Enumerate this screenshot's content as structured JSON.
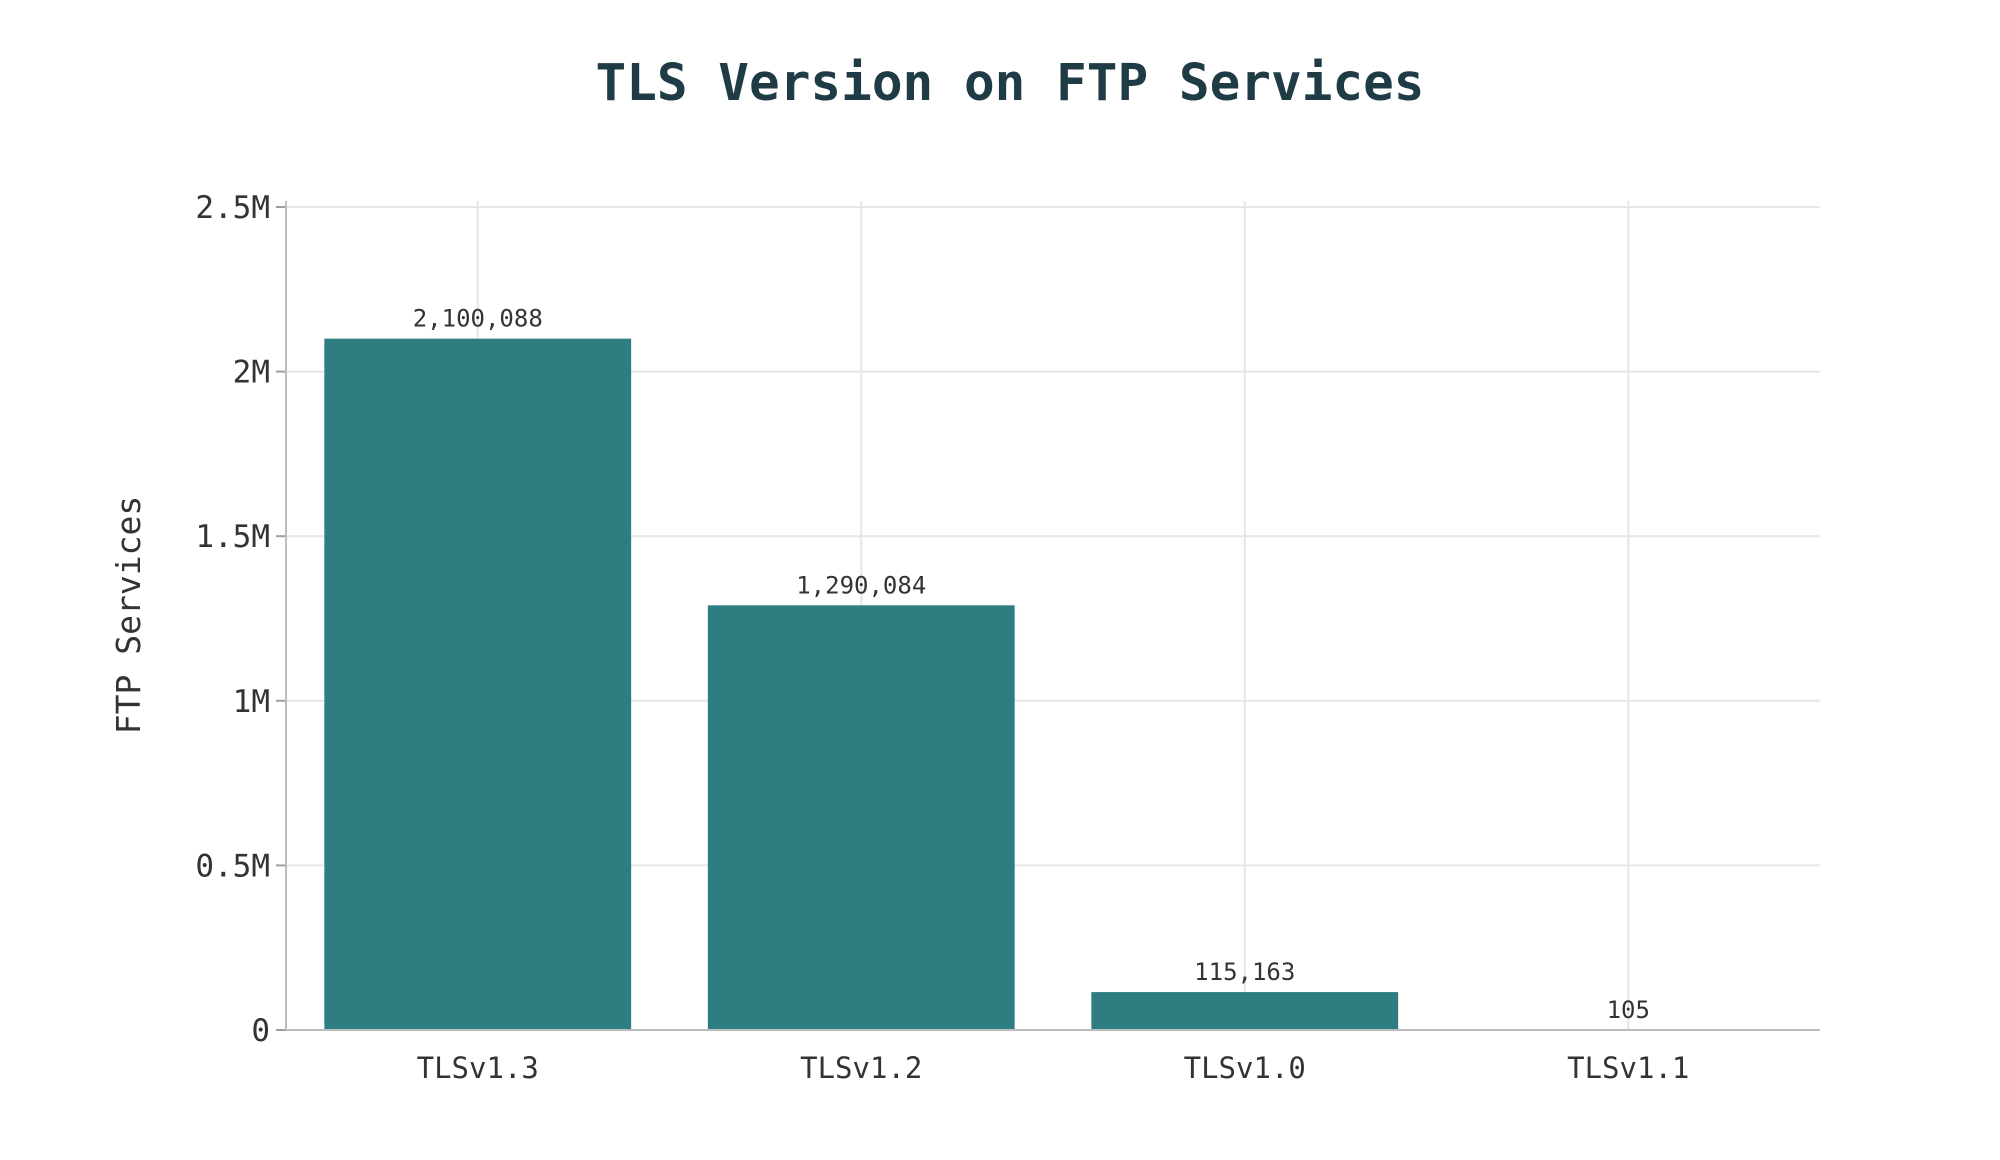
{
  "chart_data": {
    "type": "bar",
    "title": "TLS Version on FTP Services",
    "xlabel": "",
    "ylabel": "FTP Services",
    "categories": [
      "TLSv1.3",
      "TLSv1.2",
      "TLSv1.0",
      "TLSv1.1"
    ],
    "values": [
      2100088,
      1290084,
      115163,
      105
    ],
    "value_labels": [
      "2,100,088",
      "1,290,084",
      "115,163",
      "105"
    ],
    "ylim": [
      0,
      2500000
    ],
    "yticks": [
      0,
      500000,
      1000000,
      1500000,
      2000000,
      2500000
    ],
    "ytick_labels": [
      "0",
      "0.5M",
      "1M",
      "1.5M",
      "2M",
      "2.5M"
    ],
    "grid": true,
    "bar_color": "#2e7d80"
  }
}
